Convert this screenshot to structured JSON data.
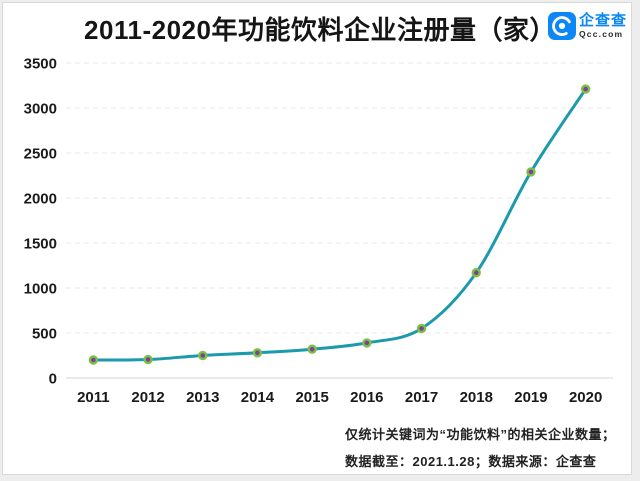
{
  "header": {
    "title": "2011-2020年功能饮料企业注册量（家）",
    "logo": {
      "icon": "qcc-logo-icon",
      "brand": "企查查",
      "domain": "Qcc.com",
      "brand_color": "#0e87f6"
    }
  },
  "chart_data": {
    "type": "line",
    "title": "2011-2020年功能饮料企业注册量（家）",
    "categories": [
      "2011",
      "2012",
      "2013",
      "2014",
      "2015",
      "2016",
      "2017",
      "2018",
      "2019",
      "2020"
    ],
    "values": [
      200,
      205,
      250,
      280,
      320,
      390,
      550,
      1170,
      2290,
      3210
    ],
    "xlabel": "",
    "ylabel": "",
    "ylim": [
      0,
      3500
    ],
    "yticks": [
      0,
      500,
      1000,
      1500,
      2000,
      2500,
      3000,
      3500
    ],
    "grid": "horizontal-dashed",
    "legend_position": "none",
    "smooth": true,
    "colors": {
      "line": "#1b9aab",
      "point_fill": "#7d3fa0",
      "point_border": "#7cc142",
      "gridline": "#e8e8e8",
      "axis_line": "#d6d6d6"
    }
  },
  "footer": {
    "note_line1": "仅统计关键词为“功能饮料”的相关企业数量；",
    "note_line2": "数据截至：2021.1.28；数据来源：企查查"
  }
}
